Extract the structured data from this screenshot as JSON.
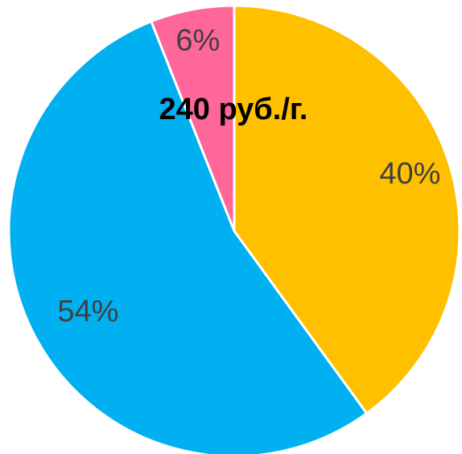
{
  "chart_data": {
    "type": "pie",
    "title": "240 руб./г.",
    "slices": [
      {
        "label": "40%",
        "value": 40,
        "color": "#FFC000"
      },
      {
        "label": "54%",
        "value": 54,
        "color": "#00B0F0"
      },
      {
        "label": "6%",
        "value": 6,
        "color": "#FF6699"
      }
    ],
    "start_angle_deg": 0,
    "direction": "clockwise",
    "slice_border_color": "#FFFFFF"
  }
}
